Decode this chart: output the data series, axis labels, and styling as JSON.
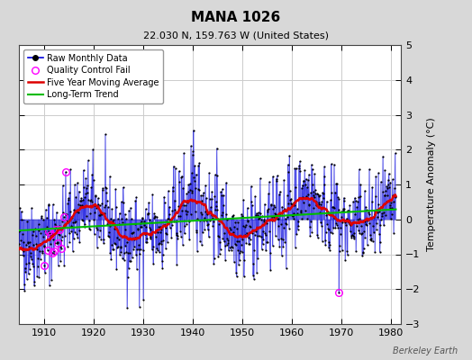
{
  "title": "MANA 1026",
  "subtitle": "22.030 N, 159.763 W (United States)",
  "watermark": "Berkeley Earth",
  "ylabel": "Temperature Anomaly (°C)",
  "xlim": [
    1905,
    1982
  ],
  "ylim": [
    -3,
    5
  ],
  "yticks": [
    -3,
    -2,
    -1,
    0,
    1,
    2,
    3,
    4,
    5
  ],
  "xticks": [
    1910,
    1920,
    1930,
    1940,
    1950,
    1960,
    1970,
    1980
  ],
  "fig_bg_color": "#d8d8d8",
  "plot_bg_color": "#ffffff",
  "raw_line_color": "#0000dd",
  "raw_dot_color": "#000000",
  "ma_color": "#dd0000",
  "trend_color": "#00bb00",
  "qc_color": "#ff00ff",
  "grid_color": "#cccccc",
  "seed": 42,
  "start_year": 1905,
  "end_year": 1980
}
